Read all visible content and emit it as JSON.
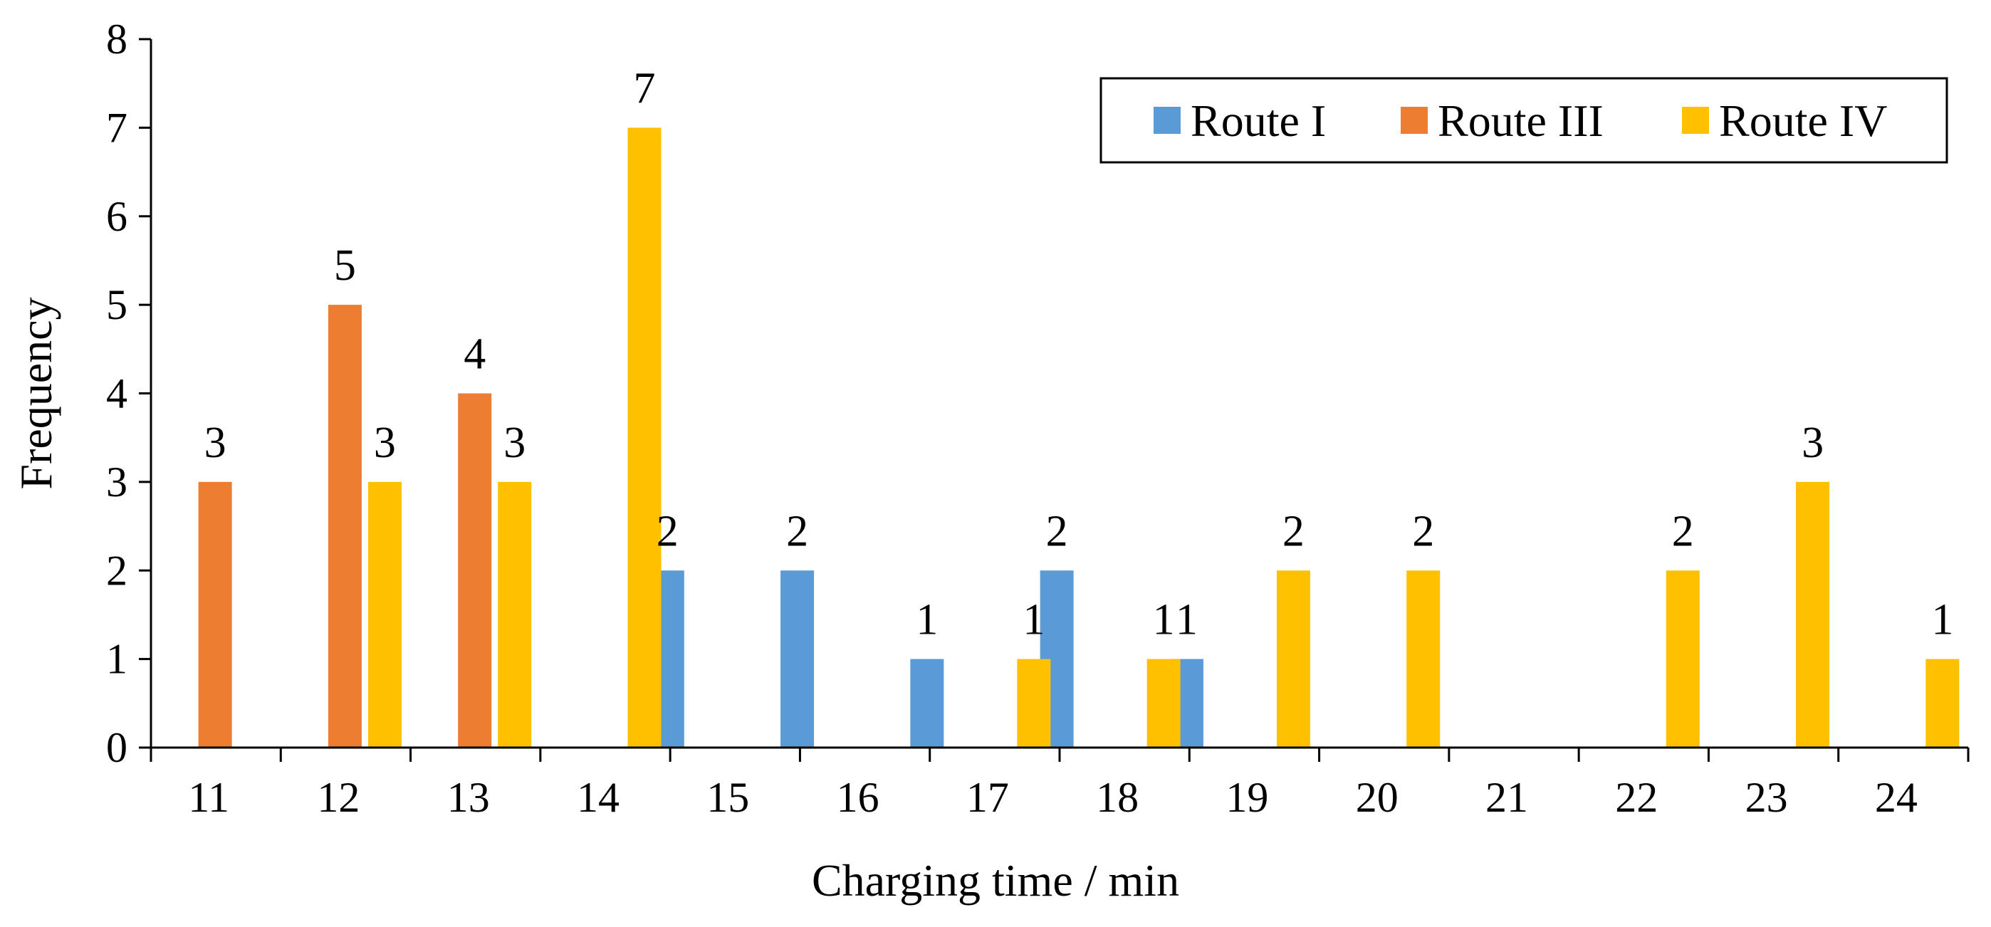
{
  "chart_data": {
    "type": "bar",
    "title": "",
    "xlabel": "Charging time / min",
    "ylabel": "Frequency",
    "categories": [
      "11",
      "12",
      "13",
      "14",
      "15",
      "16",
      "17",
      "18",
      "19",
      "20",
      "21",
      "22",
      "23",
      "24"
    ],
    "ylim": [
      0,
      8
    ],
    "yticks": [
      "0",
      "1",
      "2",
      "3",
      "4",
      "5",
      "6",
      "7",
      "8"
    ],
    "grid": false,
    "legend_position": "top-right",
    "series": [
      {
        "name": "Route I",
        "color": "#5B9BD5",
        "values": [
          null,
          null,
          null,
          null,
          2,
          2,
          1,
          2,
          1,
          null,
          null,
          null,
          null,
          null
        ],
        "labels": [
          "",
          "",
          "",
          "",
          "2",
          "2",
          "1",
          "2",
          "1",
          "",
          "",
          "",
          "",
          ""
        ]
      },
      {
        "name": "Route III",
        "color": "#ED7D31",
        "values": [
          3,
          5,
          4,
          null,
          null,
          null,
          null,
          null,
          null,
          null,
          null,
          null,
          null,
          null
        ],
        "labels": [
          "3",
          "5",
          "4",
          "",
          "",
          "",
          "",
          "",
          "",
          "",
          "",
          "",
          "",
          ""
        ]
      },
      {
        "name": "Route IV",
        "color": "#FFC000",
        "values": [
          null,
          3,
          3,
          7,
          null,
          null,
          1,
          1,
          2,
          2,
          null,
          2,
          3,
          1
        ],
        "labels": [
          "",
          "3",
          "3",
          "7",
          "",
          "",
          "1",
          "1",
          "2",
          "2",
          "",
          "2",
          "3",
          "1"
        ]
      }
    ]
  }
}
